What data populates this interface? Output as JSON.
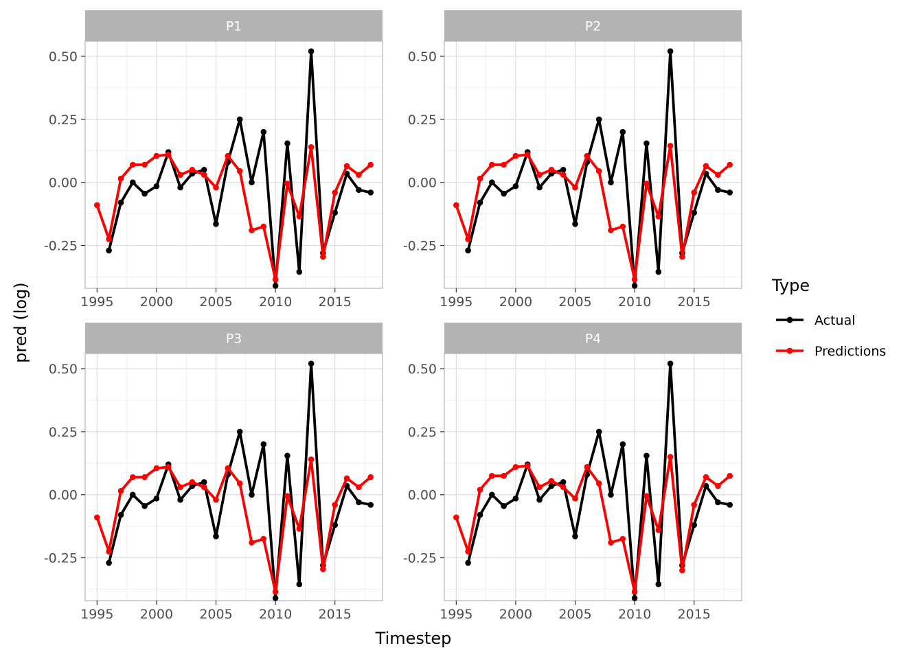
{
  "chart_data": {
    "type": "line",
    "xlabel": "Timestep",
    "ylabel": "pred (log)",
    "xlim": [
      1994,
      2019
    ],
    "ylim": [
      -0.42,
      0.56
    ],
    "x_ticks": [
      1995,
      2000,
      2005,
      2010,
      2015
    ],
    "x_tick_labels": [
      "1995",
      "2000",
      "2005",
      "2010",
      "2015"
    ],
    "y_ticks": [
      -0.25,
      0,
      0.25,
      0.5
    ],
    "y_tick_labels": [
      "-0.25",
      "0.00",
      "0.25",
      "0.50"
    ],
    "grid": true,
    "legend": {
      "title": "Type",
      "position": "right",
      "entries": [
        {
          "label": "Actual",
          "color": "#000000"
        },
        {
          "label": "Predictions",
          "color": "#ff0000"
        }
      ]
    },
    "panels": [
      {
        "title": "P1",
        "series": [
          {
            "name": "Actual",
            "color": "#000000",
            "x": [
              1996,
              1997,
              1998,
              1999,
              2000,
              2001,
              2002,
              2003,
              2004,
              2005,
              2006,
              2007,
              2008,
              2009,
              2010,
              2011,
              2012,
              2013,
              2014,
              2015,
              2016,
              2017,
              2018
            ],
            "y": [
              -0.27,
              -0.08,
              0.0,
              -0.045,
              -0.015,
              0.12,
              -0.02,
              0.035,
              0.05,
              -0.165,
              0.08,
              0.25,
              0.0,
              0.2,
              -0.41,
              0.155,
              -0.355,
              0.52,
              -0.28,
              -0.12,
              0.035,
              -0.03,
              -0.04
            ]
          },
          {
            "name": "Predictions",
            "color": "#ff0000",
            "x": [
              1995,
              1996,
              1997,
              1998,
              1999,
              2000,
              2001,
              2002,
              2003,
              2004,
              2005,
              2006,
              2007,
              2008,
              2009,
              2010,
              2011,
              2012,
              2013,
              2014,
              2015,
              2016,
              2017,
              2018
            ],
            "y": [
              -0.09,
              -0.225,
              0.015,
              0.07,
              0.07,
              0.105,
              0.11,
              0.03,
              0.05,
              0.03,
              -0.02,
              0.105,
              0.045,
              -0.19,
              -0.175,
              -0.385,
              -0.005,
              -0.135,
              0.14,
              -0.295,
              -0.04,
              0.065,
              0.03,
              0.07
            ]
          }
        ]
      },
      {
        "title": "P2",
        "series": [
          {
            "name": "Actual",
            "color": "#000000",
            "x": [
              1996,
              1997,
              1998,
              1999,
              2000,
              2001,
              2002,
              2003,
              2004,
              2005,
              2006,
              2007,
              2008,
              2009,
              2010,
              2011,
              2012,
              2013,
              2014,
              2015,
              2016,
              2017,
              2018
            ],
            "y": [
              -0.27,
              -0.08,
              0.0,
              -0.045,
              -0.015,
              0.12,
              -0.02,
              0.035,
              0.05,
              -0.165,
              0.08,
              0.25,
              0.0,
              0.2,
              -0.41,
              0.155,
              -0.355,
              0.52,
              -0.28,
              -0.12,
              0.035,
              -0.03,
              -0.04
            ]
          },
          {
            "name": "Predictions",
            "color": "#ff0000",
            "x": [
              1995,
              1996,
              1997,
              1998,
              1999,
              2000,
              2001,
              2002,
              2003,
              2004,
              2005,
              2006,
              2007,
              2008,
              2009,
              2010,
              2011,
              2012,
              2013,
              2014,
              2015,
              2016,
              2017,
              2018
            ],
            "y": [
              -0.09,
              -0.225,
              0.015,
              0.07,
              0.07,
              0.105,
              0.11,
              0.03,
              0.05,
              0.03,
              -0.02,
              0.105,
              0.045,
              -0.19,
              -0.175,
              -0.385,
              -0.005,
              -0.135,
              0.145,
              -0.295,
              -0.04,
              0.065,
              0.03,
              0.07
            ]
          }
        ]
      },
      {
        "title": "P3",
        "series": [
          {
            "name": "Actual",
            "color": "#000000",
            "x": [
              1996,
              1997,
              1998,
              1999,
              2000,
              2001,
              2002,
              2003,
              2004,
              2005,
              2006,
              2007,
              2008,
              2009,
              2010,
              2011,
              2012,
              2013,
              2014,
              2015,
              2016,
              2017,
              2018
            ],
            "y": [
              -0.27,
              -0.08,
              0.0,
              -0.045,
              -0.015,
              0.12,
              -0.02,
              0.035,
              0.05,
              -0.165,
              0.08,
              0.25,
              0.0,
              0.2,
              -0.41,
              0.155,
              -0.355,
              0.52,
              -0.28,
              -0.12,
              0.035,
              -0.03,
              -0.04
            ]
          },
          {
            "name": "Predictions",
            "color": "#ff0000",
            "x": [
              1995,
              1996,
              1997,
              1998,
              1999,
              2000,
              2001,
              2002,
              2003,
              2004,
              2005,
              2006,
              2007,
              2008,
              2009,
              2010,
              2011,
              2012,
              2013,
              2014,
              2015,
              2016,
              2017,
              2018
            ],
            "y": [
              -0.09,
              -0.225,
              0.015,
              0.07,
              0.07,
              0.105,
              0.11,
              0.03,
              0.05,
              0.03,
              -0.02,
              0.105,
              0.045,
              -0.19,
              -0.175,
              -0.385,
              -0.005,
              -0.135,
              0.14,
              -0.295,
              -0.04,
              0.065,
              0.03,
              0.07
            ]
          }
        ]
      },
      {
        "title": "P4",
        "series": [
          {
            "name": "Actual",
            "color": "#000000",
            "x": [
              1996,
              1997,
              1998,
              1999,
              2000,
              2001,
              2002,
              2003,
              2004,
              2005,
              2006,
              2007,
              2008,
              2009,
              2010,
              2011,
              2012,
              2013,
              2014,
              2015,
              2016,
              2017,
              2018
            ],
            "y": [
              -0.27,
              -0.08,
              0.0,
              -0.045,
              -0.015,
              0.12,
              -0.02,
              0.035,
              0.05,
              -0.165,
              0.08,
              0.25,
              0.0,
              0.2,
              -0.41,
              0.155,
              -0.355,
              0.52,
              -0.28,
              -0.12,
              0.035,
              -0.03,
              -0.04
            ]
          },
          {
            "name": "Predictions",
            "color": "#ff0000",
            "x": [
              1995,
              1996,
              1997,
              1998,
              1999,
              2000,
              2001,
              2002,
              2003,
              2004,
              2005,
              2006,
              2007,
              2008,
              2009,
              2010,
              2011,
              2012,
              2013,
              2014,
              2015,
              2016,
              2017,
              2018
            ],
            "y": [
              -0.09,
              -0.225,
              0.02,
              0.075,
              0.075,
              0.11,
              0.115,
              0.03,
              0.055,
              0.03,
              -0.015,
              0.11,
              0.045,
              -0.19,
              -0.175,
              -0.385,
              -0.005,
              -0.14,
              0.15,
              -0.3,
              -0.04,
              0.07,
              0.035,
              0.075
            ]
          }
        ]
      }
    ]
  }
}
